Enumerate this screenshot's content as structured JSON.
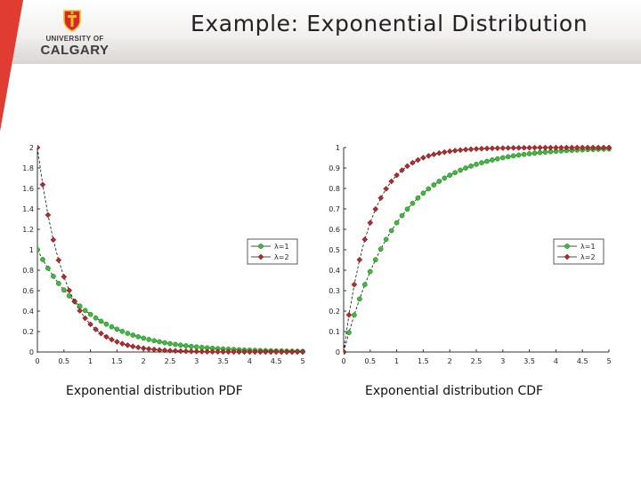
{
  "slide": {
    "title": "Example: Exponential Distribution",
    "logo": {
      "line1": "UNIVERSITY OF",
      "line2": "CALGARY"
    }
  },
  "colors": {
    "ribbon": "#e03c31",
    "series1": "#3dbb3b",
    "series2": "#b52a2a",
    "line": "#111111"
  },
  "chart_data": [
    {
      "type": "line",
      "caption": "Exponential distribution PDF",
      "function": "pdf",
      "x": [
        0,
        0.1,
        0.2,
        0.3,
        0.4,
        0.5,
        0.6,
        0.7,
        0.8,
        0.9,
        1.0,
        1.1,
        1.2,
        1.3,
        1.4,
        1.5,
        1.6,
        1.7,
        1.8,
        1.9,
        2.0,
        2.1,
        2.2,
        2.3,
        2.4,
        2.5,
        2.6,
        2.7,
        2.8,
        2.9,
        3.0,
        3.1,
        3.2,
        3.3,
        3.4,
        3.5,
        3.6,
        3.7,
        3.8,
        3.9,
        4.0,
        4.1,
        4.2,
        4.3,
        4.4,
        4.5,
        4.6,
        4.7,
        4.8,
        4.9,
        5.0
      ],
      "series": [
        {
          "name": "λ=1",
          "lambda": 1,
          "marker": "circle"
        },
        {
          "name": "λ=2",
          "lambda": 2,
          "marker": "diamond"
        }
      ],
      "xlim": [
        0,
        5
      ],
      "ylim": [
        0,
        2
      ],
      "xticks": [
        "0",
        "0.5",
        "1",
        "1.5",
        "2",
        "2.5",
        "3",
        "3.5",
        "4",
        "4.5",
        "5"
      ],
      "yticks": [
        "0",
        "0.2",
        "0.4",
        "0.6",
        "0.8",
        "1",
        "1.2",
        "1.4",
        "1.6",
        "1.8",
        "2"
      ],
      "grid": false,
      "legend": "right"
    },
    {
      "type": "line",
      "caption": "Exponential distribution CDF",
      "function": "cdf",
      "x": [
        0,
        0.1,
        0.2,
        0.3,
        0.4,
        0.5,
        0.6,
        0.7,
        0.8,
        0.9,
        1.0,
        1.1,
        1.2,
        1.3,
        1.4,
        1.5,
        1.6,
        1.7,
        1.8,
        1.9,
        2.0,
        2.1,
        2.2,
        2.3,
        2.4,
        2.5,
        2.6,
        2.7,
        2.8,
        2.9,
        3.0,
        3.1,
        3.2,
        3.3,
        3.4,
        3.5,
        3.6,
        3.7,
        3.8,
        3.9,
        4.0,
        4.1,
        4.2,
        4.3,
        4.4,
        4.5,
        4.6,
        4.7,
        4.8,
        4.9,
        5.0
      ],
      "series": [
        {
          "name": "λ=1",
          "lambda": 1,
          "marker": "circle"
        },
        {
          "name": "λ=2",
          "lambda": 2,
          "marker": "diamond"
        }
      ],
      "xlim": [
        0,
        5
      ],
      "ylim": [
        0,
        1
      ],
      "xticks": [
        "0",
        "0.5",
        "1",
        "1.5",
        "2",
        "2.5",
        "3",
        "3.5",
        "4",
        "4.5",
        "5"
      ],
      "yticks": [
        "0",
        "0.1",
        "0.2",
        "0.3",
        "0.4",
        "0.5",
        "0.6",
        "0.7",
        "0.8",
        "0.9",
        "1"
      ],
      "grid": false,
      "legend": "right"
    }
  ]
}
